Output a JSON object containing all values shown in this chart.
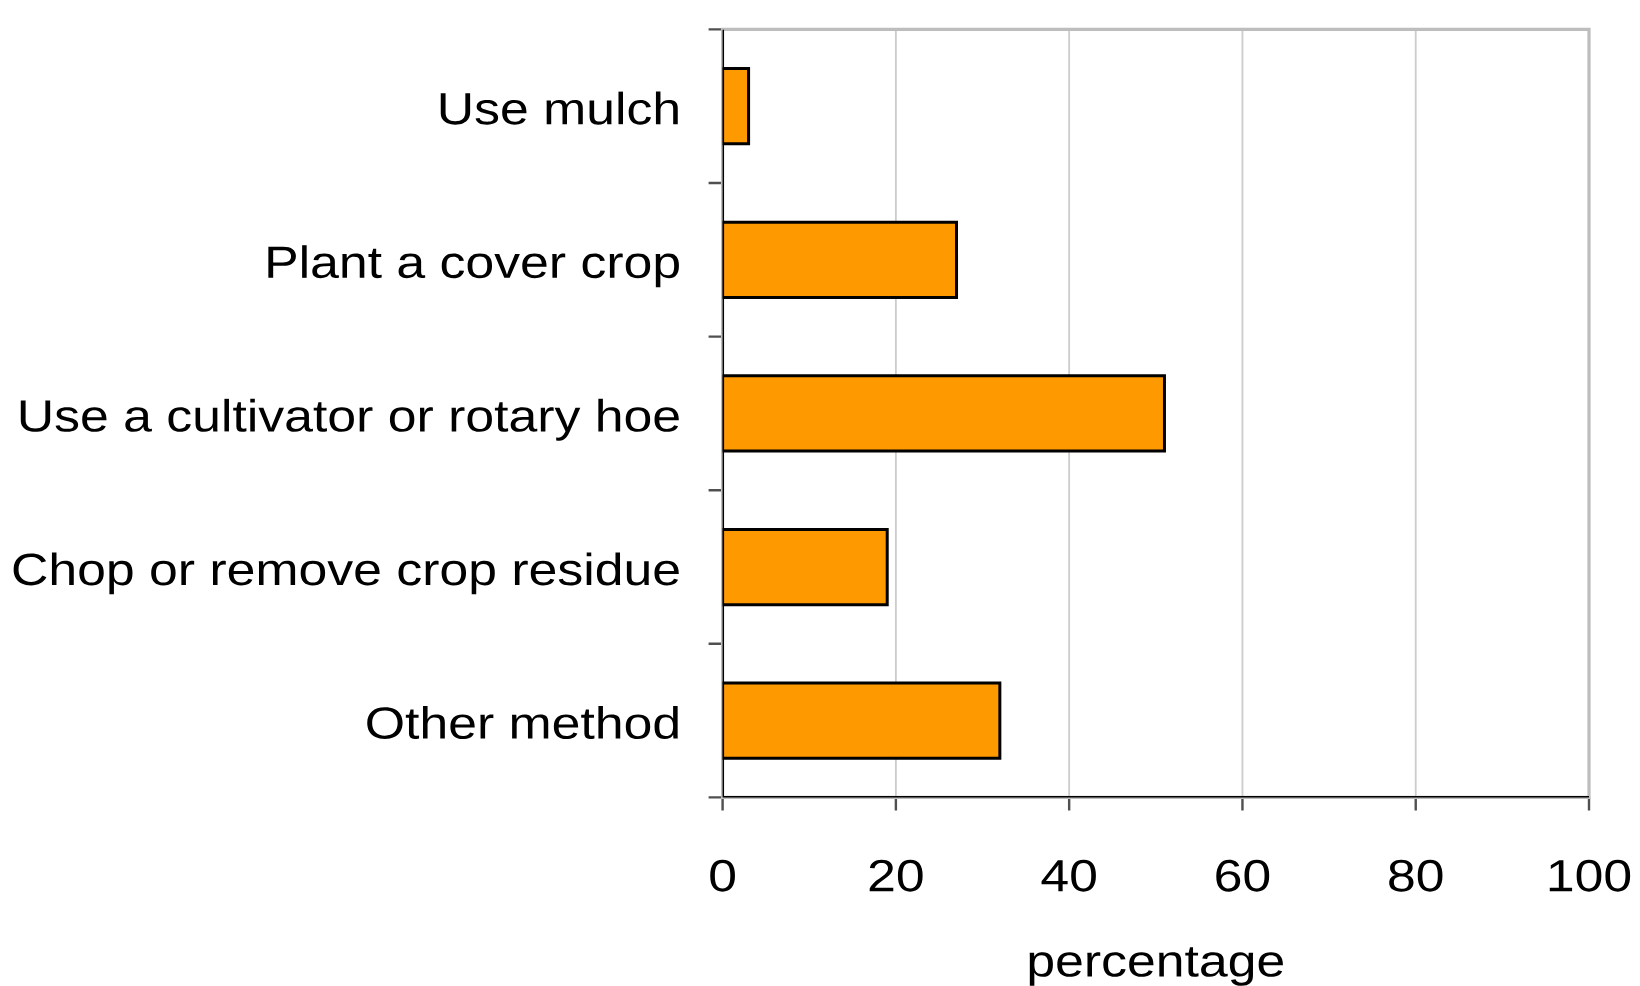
{
  "chart_data": {
    "type": "bar",
    "orientation": "horizontal",
    "xlabel": "percentage",
    "categories": [
      "Use mulch",
      "Plant a cover crop",
      "Use a cultivator or rotary hoe",
      "Chop or remove crop residue",
      "Other method"
    ],
    "values": [
      3,
      27,
      51,
      19,
      32
    ],
    "color": "#ff9900",
    "xlim": [
      0,
      100
    ],
    "xticks": [
      0,
      20,
      40,
      60,
      80,
      100
    ],
    "grid": "x"
  }
}
